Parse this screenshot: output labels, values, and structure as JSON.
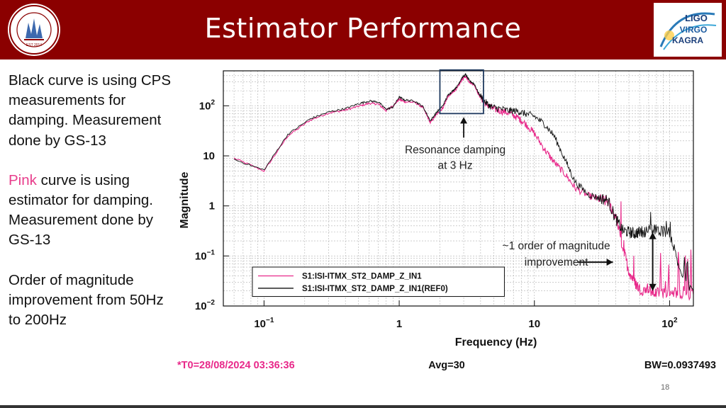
{
  "header": {
    "title": "Estimator Performance",
    "bg_color": "#8b0000",
    "seal_text": "STANFORD UNIVERSITY LIGO GROUP",
    "seal_year": "EST 2014",
    "logo_lines": [
      "LIGO",
      "VIRGO",
      "KAGRA"
    ]
  },
  "notes": {
    "p1": "Black curve is using CPS measurements for damping. Measurement done by GS-13",
    "p2_pink": "Pink",
    "p2_rest": " curve is using estimator for damping. Measurement done by GS-13",
    "p3": "Order of magnitude improvement from 50Hz to 200Hz"
  },
  "footer": {
    "slide_number": "18"
  },
  "chart_data": {
    "type": "line",
    "xscale": "log",
    "yscale": "log",
    "xlim": [
      0.05,
      150
    ],
    "ylim": [
      0.01,
      500
    ],
    "xlabel": "Frequency (Hz)",
    "ylabel": "Magnitude",
    "xticks": [
      0.1,
      1,
      10,
      100
    ],
    "xtick_labels": [
      [
        "10",
        "−1"
      ],
      [
        "1",
        ""
      ],
      [
        "10",
        ""
      ],
      [
        "10",
        "2"
      ]
    ],
    "yticks": [
      0.01,
      0.1,
      1,
      10,
      100
    ],
    "ytick_labels": [
      [
        "10",
        "−2"
      ],
      [
        "10",
        "−1"
      ],
      [
        "1",
        ""
      ],
      [
        "10",
        ""
      ],
      [
        "10",
        "2"
      ]
    ],
    "grid": true,
    "series": [
      {
        "name": "S1:ISI-ITMX_ST2_DAMP_Z_IN1",
        "color": "#e8298a",
        "x": [
          0.06,
          0.1,
          0.15,
          0.22,
          0.3,
          0.4,
          0.5,
          0.6,
          0.7,
          0.8,
          0.9,
          1.0,
          1.1,
          1.3,
          1.5,
          1.7,
          1.9,
          2.1,
          2.3,
          2.5,
          2.7,
          2.9,
          3.1,
          3.3,
          3.6,
          3.9,
          4.3,
          4.8,
          5.5,
          6.5,
          7.5,
          8.5,
          10,
          12,
          14,
          17,
          20,
          25,
          30,
          35,
          40,
          45,
          50,
          55,
          60,
          70,
          80,
          100,
          120,
          150
        ],
        "y": [
          9.0,
          5.0,
          25,
          52,
          72,
          82,
          98,
          112,
          108,
          80,
          100,
          135,
          120,
          118,
          92,
          46,
          68,
          90,
          155,
          185,
          230,
          330,
          390,
          300,
          260,
          160,
          115,
          90,
          80,
          72,
          58,
          45,
          28,
          13,
          7.5,
          4.2,
          2.3,
          1.6,
          1.35,
          1.2,
          0.6,
          0.15,
          0.05,
          0.03,
          0.022,
          0.02,
          0.018,
          0.02,
          0.018,
          0.017
        ]
      },
      {
        "name": "S1:ISI-ITMX_ST2_DAMP_Z_IN1(REF0)",
        "color": "#111111",
        "x": [
          0.06,
          0.1,
          0.15,
          0.22,
          0.3,
          0.4,
          0.5,
          0.6,
          0.7,
          0.8,
          0.9,
          1.0,
          1.1,
          1.3,
          1.5,
          1.7,
          1.9,
          2.1,
          2.3,
          2.5,
          2.7,
          2.9,
          3.1,
          3.3,
          3.6,
          3.9,
          4.3,
          4.8,
          5.5,
          6.5,
          7.5,
          8.5,
          10,
          12,
          14,
          17,
          20,
          25,
          30,
          35,
          40,
          45,
          50,
          55,
          60,
          70,
          80,
          100,
          120,
          150
        ],
        "y": [
          8.5,
          5.2,
          27,
          55,
          75,
          88,
          110,
          125,
          120,
          85,
          95,
          150,
          130,
          125,
          96,
          50,
          75,
          100,
          165,
          200,
          250,
          360,
          420,
          320,
          270,
          170,
          120,
          95,
          88,
          80,
          78,
          70,
          62,
          42,
          25,
          8,
          3.0,
          1.7,
          1.45,
          1.3,
          0.55,
          0.32,
          0.3,
          0.28,
          0.3,
          0.32,
          0.33,
          0.3,
          0.05,
          0.02
        ]
      }
    ],
    "annotations": {
      "resonance_box_xrange": [
        2.0,
        4.2
      ],
      "resonance_box_yrange": [
        70,
        520
      ],
      "resonance_line1": "Resonance damping",
      "resonance_line2": "at 3 Hz",
      "resonance_arrow_x": 3.0,
      "improve_line1": "~1 order of magnitude",
      "improve_line2": "improvement",
      "improve_arrow_x": 75,
      "improve_arrow_yrange": [
        0.02,
        0.3
      ]
    },
    "footer_texts": {
      "t0": "*T0=28/08/2024 03:36:36",
      "avg": "Avg=30",
      "bw": "BW=0.0937493"
    },
    "colors": {
      "t0": "#e8298a",
      "text": "#111111",
      "grid": "#b0b0b0"
    }
  }
}
